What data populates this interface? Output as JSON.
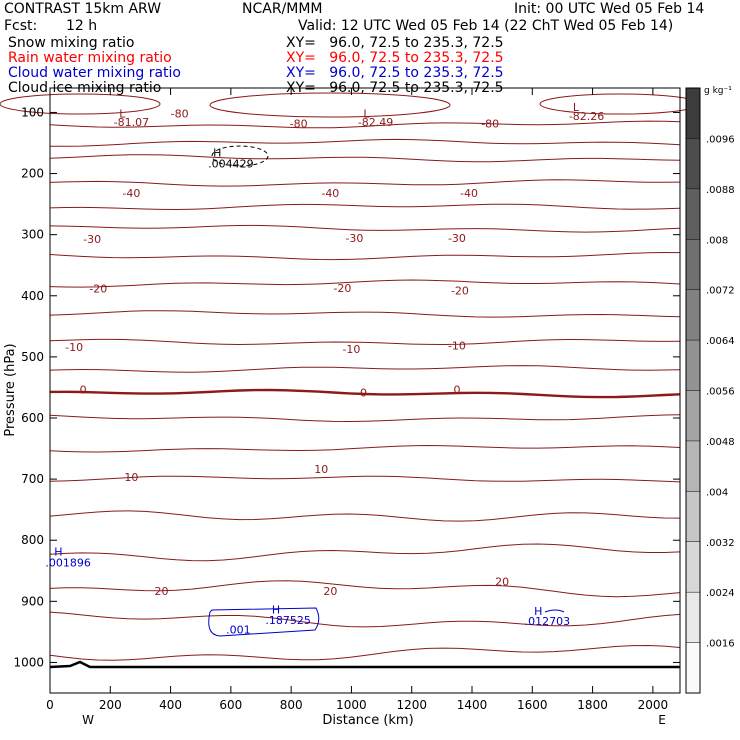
{
  "header": {
    "model": "CONTRAST 15km ARW",
    "org": "NCAR/MMM",
    "init": "Init: 00 UTC Wed 05 Feb 14",
    "fcst_label": "Fcst:",
    "fcst_value": "12 h",
    "valid": "Valid: 12 UTC Wed 05 Feb 14 (22 ChT Wed 05 Feb 14)",
    "fields": [
      {
        "name": "Snow mixing ratio",
        "xy": "XY=   96.0, 72.5 to 235.3, 72.5",
        "color": "#000000"
      },
      {
        "name": "Rain water mixing ratio",
        "xy": "XY=   96.0, 72.5 to 235.3, 72.5",
        "color": "#ff0000"
      },
      {
        "name": "Cloud water mixing ratio",
        "xy": "XY=   96.0, 72.5 to 235.3, 72.5",
        "color": "#0000cc"
      },
      {
        "name": "Cloud ice mixing ratio",
        "xy": "XY=   96.0, 72.5 to 235.3, 72.5",
        "color": "#000000"
      }
    ]
  },
  "colors": {
    "temperature_contour": "#8b1a1a",
    "cloud_water": "#0000cc",
    "terrain": "#000000"
  },
  "chart_data": {
    "type": "contour",
    "xlabel": "Distance (km)",
    "ylabel": "Pressure (hPa)",
    "xlim": [
      0,
      2090
    ],
    "ylim": [
      1050,
      60
    ],
    "x_ticks": [
      0,
      200,
      400,
      600,
      800,
      1000,
      1200,
      1400,
      1600,
      1800,
      2000
    ],
    "y_ticks": [
      100,
      200,
      300,
      400,
      500,
      600,
      700,
      800,
      900,
      1000
    ],
    "x_end_labels": {
      "left": "W",
      "right": "E"
    },
    "colorbar": {
      "unit": "g kg⁻¹",
      "ticks": [
        ".0096",
        ".0088",
        ".008",
        ".0072",
        ".0064",
        ".0056",
        ".0048",
        ".004",
        ".0032",
        ".0024",
        ".0016"
      ]
    },
    "contour_labels": [
      {
        "text": "L",
        "x": 240,
        "y": 108
      },
      {
        "text": "-81.07",
        "x": 270,
        "y": 122
      },
      {
        "text": "-80",
        "x": 430,
        "y": 108
      },
      {
        "text": "-80",
        "x": 825,
        "y": 125
      },
      {
        "text": "L",
        "x": 1050,
        "y": 108
      },
      {
        "text": "-82.49",
        "x": 1080,
        "y": 122
      },
      {
        "text": "-80",
        "x": 1460,
        "y": 125
      },
      {
        "text": "L",
        "x": 1745,
        "y": 98
      },
      {
        "text": "-82.26",
        "x": 1780,
        "y": 112
      },
      {
        "text": "H",
        "x": 555,
        "y": 172
      },
      {
        "text": ".004429",
        "x": 600,
        "y": 190
      },
      {
        "text": "-40",
        "x": 270,
        "y": 238
      },
      {
        "text": "-40",
        "x": 930,
        "y": 238
      },
      {
        "text": "-40",
        "x": 1390,
        "y": 238
      },
      {
        "text": "-30",
        "x": 140,
        "y": 314
      },
      {
        "text": "-30",
        "x": 1010,
        "y": 312
      },
      {
        "text": "-30",
        "x": 1350,
        "y": 312
      },
      {
        "text": "-20",
        "x": 160,
        "y": 395
      },
      {
        "text": "-20",
        "x": 970,
        "y": 394
      },
      {
        "text": "-20",
        "x": 1360,
        "y": 398
      },
      {
        "text": "-10",
        "x": 80,
        "y": 490
      },
      {
        "text": "-10",
        "x": 1000,
        "y": 494
      },
      {
        "text": "-10",
        "x": 1350,
        "y": 488
      },
      {
        "text": "0",
        "x": 110,
        "y": 560
      },
      {
        "text": "0",
        "x": 1040,
        "y": 565
      },
      {
        "text": "0",
        "x": 1350,
        "y": 560
      },
      {
        "text": "10",
        "x": 270,
        "y": 703
      },
      {
        "text": "10",
        "x": 900,
        "y": 690
      },
      {
        "text": "H",
        "x": 28,
        "y": 825
      },
      {
        "text": ".001896",
        "x": 60,
        "y": 843
      },
      {
        "text": "20",
        "x": 370,
        "y": 890
      },
      {
        "text": "20",
        "x": 930,
        "y": 890
      },
      {
        "text": "20",
        "x": 1500,
        "y": 874
      },
      {
        "text": "H",
        "x": 750,
        "y": 920
      },
      {
        "text": ".187525",
        "x": 790,
        "y": 937
      },
      {
        "text": ".001",
        "x": 625,
        "y": 953
      },
      {
        "text": "H",
        "x": 1620,
        "y": 922
      },
      {
        "text": ".012703",
        "x": 1650,
        "y": 939
      }
    ]
  }
}
